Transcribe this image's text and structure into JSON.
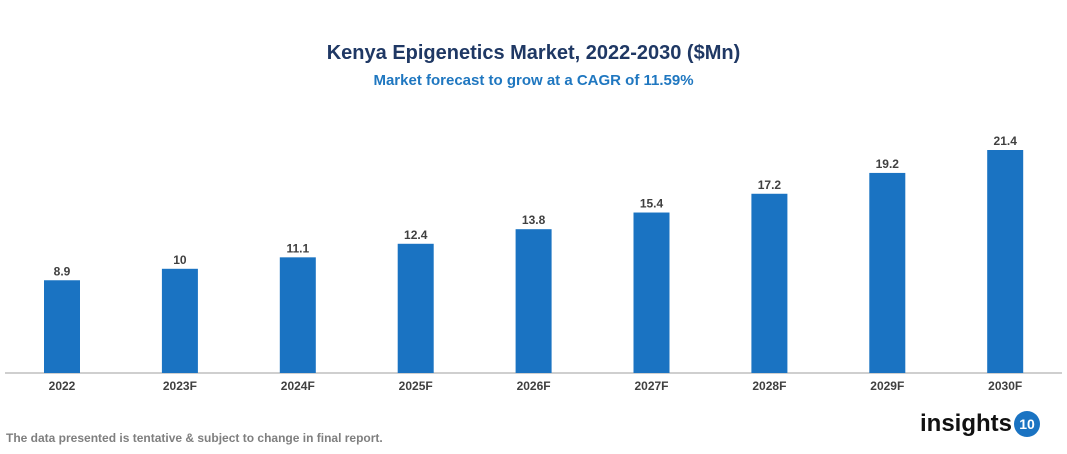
{
  "chart_data": {
    "type": "bar",
    "title": "Kenya Epigenetics Market, 2022-2030 ($Mn)",
    "subtitle": "Market forecast to grow at a CAGR of 11.59%",
    "categories": [
      "2022",
      "2023F",
      "2024F",
      "2025F",
      "2026F",
      "2027F",
      "2028F",
      "2029F",
      "2030F"
    ],
    "values": [
      8.9,
      10,
      11.1,
      12.4,
      13.8,
      15.4,
      17.2,
      19.2,
      21.4
    ],
    "xlabel": "",
    "ylabel": "",
    "ylim": [
      0,
      21.4
    ],
    "grid": false,
    "bar_color": "#1a73c2"
  },
  "footer": {
    "note": "The data presented is tentative & subject to change in final report."
  },
  "logo": {
    "text": "insights",
    "number": "10"
  }
}
